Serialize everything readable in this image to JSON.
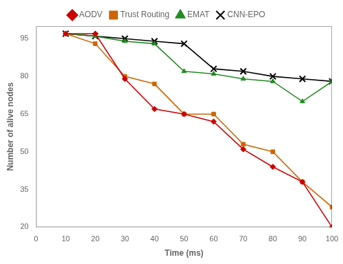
{
  "chart_data": {
    "type": "line",
    "x": [
      10,
      20,
      30,
      40,
      50,
      60,
      70,
      80,
      90,
      100
    ],
    "series": [
      {
        "name": "AODV",
        "color": "#cc0000",
        "marker": "diamond",
        "values": [
          97,
          97,
          79,
          67,
          65,
          62,
          51,
          44,
          38,
          20
        ]
      },
      {
        "name": "Trust Routing",
        "color": "#cc6600",
        "marker": "square",
        "values": [
          97,
          93,
          80,
          77,
          65,
          65,
          53,
          50,
          38,
          28
        ]
      },
      {
        "name": "EMAT",
        "color": "#228B22",
        "marker": "triangle",
        "values": [
          97,
          96,
          94,
          93,
          82,
          81,
          79,
          78,
          70,
          78
        ]
      },
      {
        "name": "CNN-EPO",
        "color": "#000000",
        "marker": "x",
        "values": [
          97,
          96,
          95,
          94,
          93,
          83,
          82,
          80,
          79,
          78
        ]
      }
    ],
    "xlabel": "Time (ms)",
    "ylabel": "Number of alive nodes",
    "xlim": [
      0,
      100
    ],
    "ylim": [
      20,
      100
    ],
    "xticks": [
      0,
      10,
      20,
      30,
      40,
      50,
      60,
      70,
      80,
      90,
      100
    ],
    "yticks": [
      20,
      35,
      50,
      65,
      80,
      95
    ],
    "grid": false,
    "legend": "top"
  }
}
